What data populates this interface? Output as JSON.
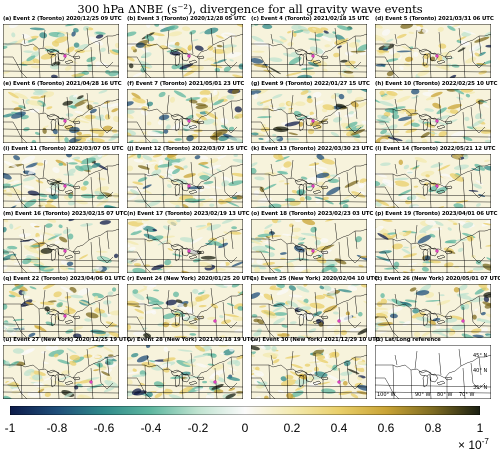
{
  "title": "300 hPa ΔNBE (s⁻²), divergence for all gravity wave events",
  "panels": [
    {
      "label": "(a) Event 2 (Toronto) 2020/12/25 09 UTC",
      "city": "Toronto"
    },
    {
      "label": "(b) Event 3 (Toronto) 2020/12/28 05 UTC",
      "city": "Toronto"
    },
    {
      "label": "(c) Event 4 (Toronto) 2021/02/18 15 UTC",
      "city": "Toronto"
    },
    {
      "label": "(d) Event 5 (Toronto) 2021/03/31 06 UTC",
      "city": "Toronto"
    },
    {
      "label": "(e) Event 6 (Toronto) 2021/04/28 16 UTC",
      "city": "Toronto"
    },
    {
      "label": "(f) Event 7 (Toronto) 2021/05/01 23 UTC",
      "city": "Toronto"
    },
    {
      "label": "(g) Event 9 (Toronto) 2022/01/27 15 UTC",
      "city": "Toronto"
    },
    {
      "label": "(h) Event 10 (Toronto) 2022/02/25 10 UTC",
      "city": "Toronto"
    },
    {
      "label": "(i) Event 11 (Toronto) 2022/03/07 05 UTC",
      "city": "Toronto"
    },
    {
      "label": "(j) Event 12 (Toronto) 2022/03/07 15 UTC",
      "city": "Toronto"
    },
    {
      "label": "(k) Event 13 (Toronto) 2022/03/30 23 UTC",
      "city": "Toronto"
    },
    {
      "label": "(l) Event 14 (Toronto) 2022/05/21 12 UTC",
      "city": "Toronto"
    },
    {
      "label": "(m) Event 16 (Toronto) 2023/02/15 07 UTC",
      "city": "Toronto"
    },
    {
      "label": "(n) Event 17 (Toronto) 2023/02/19 13 UTC",
      "city": "Toronto"
    },
    {
      "label": "(o) Event 18 (Toronto) 2023/02/23 03 UTC",
      "city": "Toronto"
    },
    {
      "label": "(p) Event 19 (Toronto) 2023/04/01 06 UTC",
      "city": "Toronto"
    },
    {
      "label": "(q) Event 22 (Toronto) 2023/04/06 01 UTC",
      "city": "Toronto"
    },
    {
      "label": "(r) Event 24 (New York) 2020/01/25 20 UTC",
      "city": "New York"
    },
    {
      "label": "(s) Event 25 (New York) 2020/02/04 10 UTC",
      "city": "New York"
    },
    {
      "label": "(t) Event 26 (New York) 2020/05/01 07 UTC",
      "city": "New York"
    },
    {
      "label": "(u) Event 27 (New York) 2020/12/25 19 UTC",
      "city": "New York"
    },
    {
      "label": "(v) Event 28 (New York) 2021/02/18 19 UTC",
      "city": "New York"
    },
    {
      "label": "(w) Event 30 (New York) 2021/12/29 10 UTC",
      "city": "New York"
    }
  ],
  "reference": {
    "label": "(x) Lat/Long reference",
    "lat_labels": [
      "45° N",
      "40° N",
      "35° N"
    ],
    "lon_labels": [
      "100° W",
      "90° W",
      "80° W",
      "70° W"
    ]
  },
  "colorbar": {
    "ticks": [
      "-1",
      "-0.8",
      "-0.6",
      "-0.4",
      "-0.2",
      "0",
      "0.2",
      "0.4",
      "0.6",
      "0.8",
      "1"
    ],
    "multiplier_base": "× 10",
    "multiplier_exp": "-7",
    "range": [
      -1,
      1
    ],
    "colors": [
      "#0d1b4a",
      "#1f4e79",
      "#2f8a8a",
      "#5fb7a0",
      "#bfe3d0",
      "#fafafa",
      "#f3eab0",
      "#e9cf6a",
      "#c9a436",
      "#7d6b22",
      "#1a1f12"
    ]
  }
}
